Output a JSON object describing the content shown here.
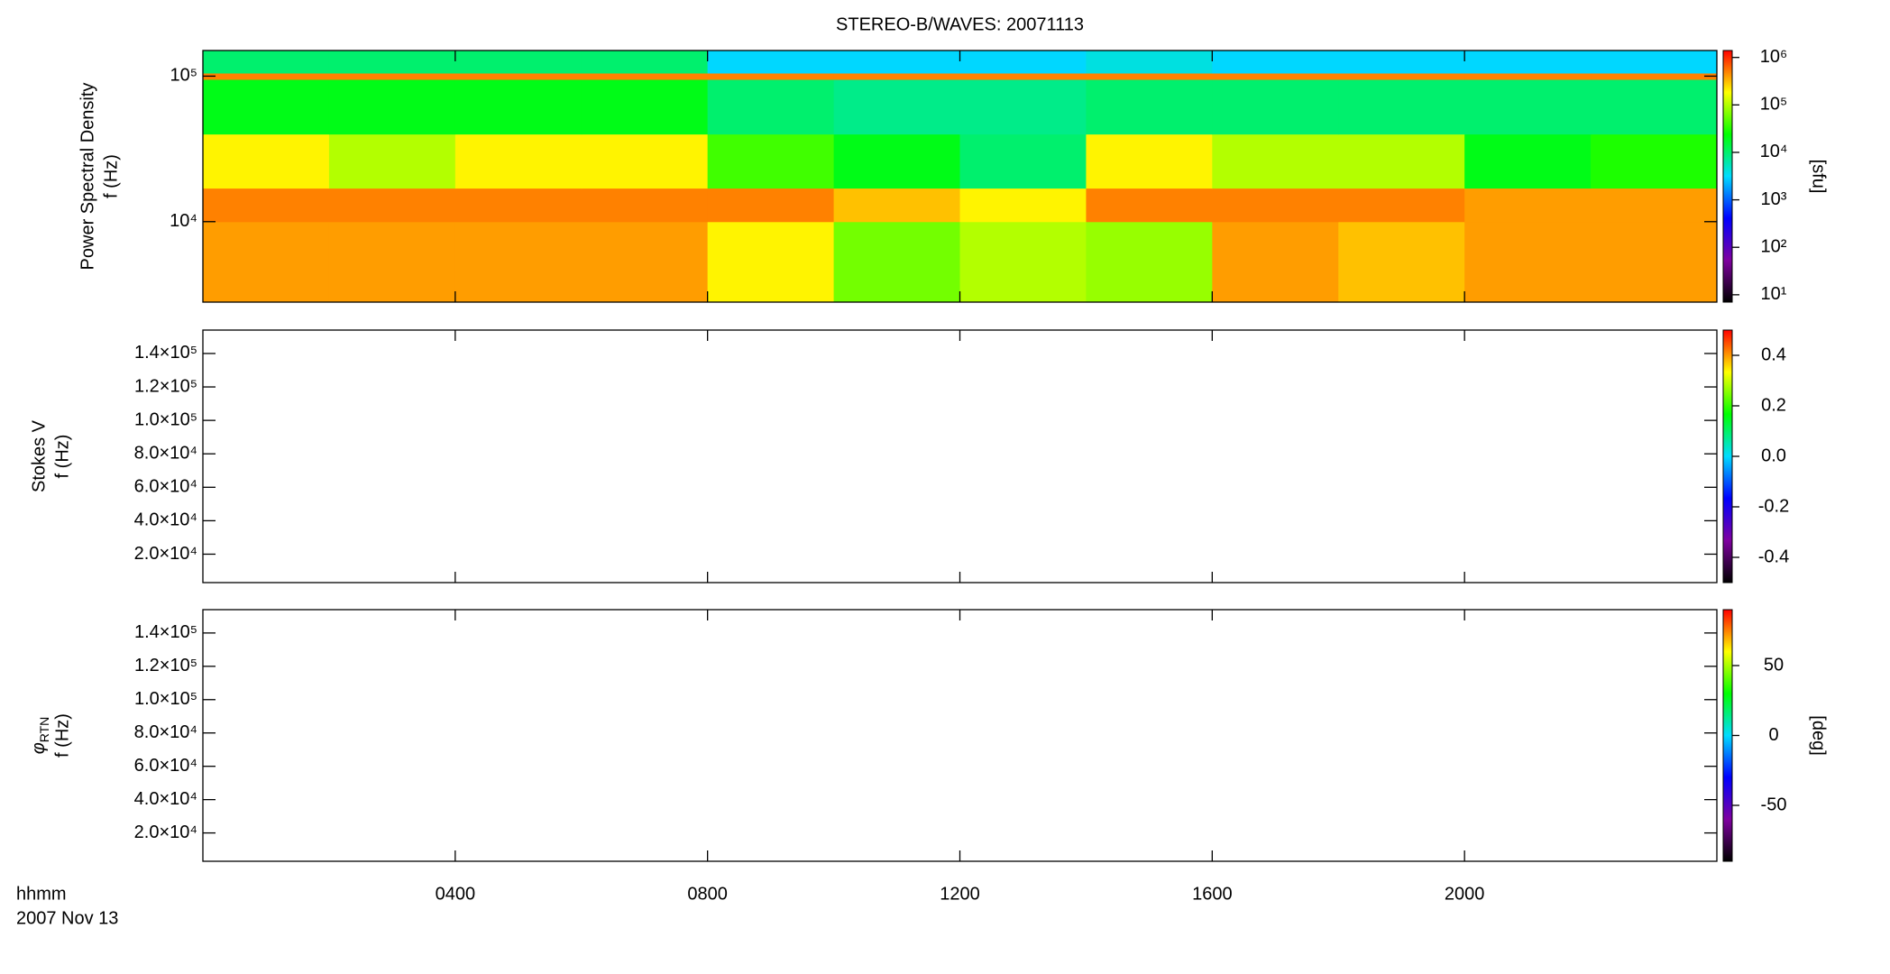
{
  "chart_data": [
    {
      "type": "heatmap",
      "title": "STEREO-B/WAVES: 20071113",
      "ylabel_top": "Power Spectral Density",
      "ylabel": "f (Hz)",
      "ylog": true,
      "ylim": [
        2800,
        150000
      ],
      "yticks": [
        {
          "value": 10000,
          "label": "10⁴"
        },
        {
          "value": 100000,
          "label": "10⁵"
        }
      ],
      "xlim": [
        0,
        24
      ],
      "xticks": [
        4,
        8,
        12,
        16,
        20
      ],
      "x_edges": [
        0,
        2,
        4,
        6,
        8,
        10,
        12,
        14,
        16,
        18,
        20,
        22,
        24
      ],
      "y_edges": [
        2800,
        10000,
        17000,
        40000,
        95000,
        105000,
        150000
      ],
      "z": [
        [
          400000,
          400000,
          400000,
          400000,
          200000,
          60000,
          100000,
          80000,
          400000,
          300000,
          400000,
          400000
        ],
        [
          500000,
          500000,
          500000,
          500000,
          500000,
          300000,
          200000,
          500000,
          500000,
          500000,
          400000,
          400000
        ],
        [
          200000,
          100000,
          200000,
          200000,
          40000,
          20000,
          10000,
          200000,
          100000,
          100000,
          20000,
          30000
        ],
        [
          20000,
          20000,
          20000,
          20000,
          10000,
          8000,
          8000,
          10000,
          10000,
          10000,
          10000,
          10000
        ],
        [
          500000,
          500000,
          500000,
          500000,
          500000,
          500000,
          500000,
          500000,
          500000,
          500000,
          500000,
          500000
        ],
        [
          10000,
          10000,
          10000,
          10000,
          3000,
          3000,
          3000,
          4000,
          3000,
          3000,
          3000,
          3000
        ]
      ],
      "colormap": [
        "#000000",
        "#7f00a0",
        "#0000ff",
        "#00dcff",
        "#00ff00",
        "#ffff00",
        "#ff0000"
      ],
      "clog": true,
      "clim": [
        7,
        1400000
      ],
      "cticks": [
        {
          "value": 10,
          "label": "10¹"
        },
        {
          "value": 100,
          "label": "10²"
        },
        {
          "value": 1000,
          "label": "10³"
        },
        {
          "value": 10000,
          "label": "10⁴"
        },
        {
          "value": 100000,
          "label": "10⁵"
        },
        {
          "value": 1000000,
          "label": "10⁶"
        }
      ],
      "clabel": "[sfu]"
    },
    {
      "type": "heatmap",
      "ylabel_top": "Stokes V",
      "ylabel": "f (Hz)",
      "ylog": false,
      "ylim": [
        3000,
        154000
      ],
      "yticks": [
        {
          "value": 20000,
          "label": "2.0×10⁴"
        },
        {
          "value": 40000,
          "label": "4.0×10⁴"
        },
        {
          "value": 60000,
          "label": "6.0×10⁴"
        },
        {
          "value": 80000,
          "label": "8.0×10⁴"
        },
        {
          "value": 100000,
          "label": "1.0×10⁵"
        },
        {
          "value": 120000,
          "label": "1.2×10⁵"
        },
        {
          "value": 140000,
          "label": "1.4×10⁵"
        }
      ],
      "xlim": [
        0,
        24
      ],
      "xticks": [
        4,
        8,
        12,
        16,
        20
      ],
      "colormap": [
        "#000000",
        "#7f00a0",
        "#0000ff",
        "#00dcff",
        "#00ff00",
        "#ffff00",
        "#ff0000"
      ],
      "clog": false,
      "clim": [
        -0.5,
        0.5
      ],
      "cticks": [
        -0.4,
        -0.2,
        {
          "value": 0,
          "label": "0.0"
        },
        0.2,
        0.4
      ]
    },
    {
      "type": "heatmap",
      "ylabel_symbol": "φ",
      "ylabel_subscript": "RTN",
      "ylabel": "f (Hz)",
      "ylog": false,
      "ylim": [
        3000,
        154000
      ],
      "yticks": [
        {
          "value": 20000,
          "label": "2.0×10⁴"
        },
        {
          "value": 40000,
          "label": "4.0×10⁴"
        },
        {
          "value": 60000,
          "label": "6.0×10⁴"
        },
        {
          "value": 80000,
          "label": "8.0×10⁴"
        },
        {
          "value": 100000,
          "label": "1.0×10⁵"
        },
        {
          "value": 120000,
          "label": "1.2×10⁵"
        },
        {
          "value": 140000,
          "label": "1.4×10⁵"
        }
      ],
      "xlim": [
        0,
        24
      ],
      "xticks": [
        {
          "value": 4,
          "label": "0400"
        },
        {
          "value": 8,
          "label": "0800"
        },
        {
          "value": 12,
          "label": "1200"
        },
        {
          "value": 16,
          "label": "1600"
        },
        {
          "value": 20,
          "label": "2000"
        }
      ],
      "xlabel": "hhmm",
      "date": "2007 Nov 13",
      "colormap": [
        "#000000",
        "#7f00a0",
        "#0000ff",
        "#00dcff",
        "#00ff00",
        "#ffff00",
        "#ff0000"
      ],
      "clog": false,
      "clim": [
        -90,
        90
      ],
      "cticks": [
        -50,
        0,
        50
      ],
      "clabel": "[deg]"
    }
  ]
}
